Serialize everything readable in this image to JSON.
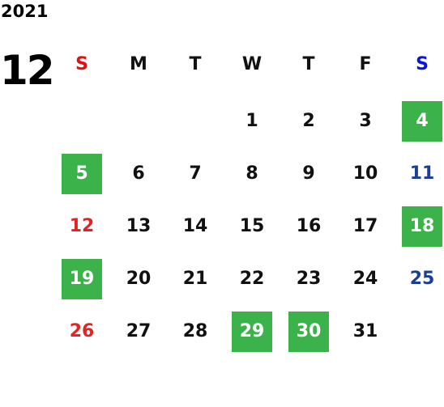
{
  "calendar": {
    "year": "2021",
    "month": "12",
    "weekdays": [
      "S",
      "M",
      "T",
      "W",
      "T",
      "F",
      "S"
    ],
    "weeks": [
      [
        null,
        null,
        null,
        {
          "day": "1",
          "highlight": false
        },
        {
          "day": "2",
          "highlight": false
        },
        {
          "day": "3",
          "highlight": false
        },
        {
          "day": "4",
          "highlight": true
        }
      ],
      [
        {
          "day": "5",
          "highlight": true
        },
        {
          "day": "6",
          "highlight": false
        },
        {
          "day": "7",
          "highlight": false
        },
        {
          "day": "8",
          "highlight": false
        },
        {
          "day": "9",
          "highlight": false
        },
        {
          "day": "10",
          "highlight": false
        },
        {
          "day": "11",
          "highlight": false
        }
      ],
      [
        {
          "day": "12",
          "highlight": false
        },
        {
          "day": "13",
          "highlight": false
        },
        {
          "day": "14",
          "highlight": false
        },
        {
          "day": "15",
          "highlight": false
        },
        {
          "day": "16",
          "highlight": false
        },
        {
          "day": "17",
          "highlight": false
        },
        {
          "day": "18",
          "highlight": true
        }
      ],
      [
        {
          "day": "19",
          "highlight": true
        },
        {
          "day": "20",
          "highlight": false
        },
        {
          "day": "21",
          "highlight": false
        },
        {
          "day": "22",
          "highlight": false
        },
        {
          "day": "23",
          "highlight": false
        },
        {
          "day": "24",
          "highlight": false
        },
        {
          "day": "25",
          "highlight": false
        }
      ],
      [
        {
          "day": "26",
          "highlight": false
        },
        {
          "day": "27",
          "highlight": false
        },
        {
          "day": "28",
          "highlight": false
        },
        {
          "day": "29",
          "highlight": true
        },
        {
          "day": "30",
          "highlight": true
        },
        {
          "day": "31",
          "highlight": false
        },
        null
      ]
    ]
  }
}
